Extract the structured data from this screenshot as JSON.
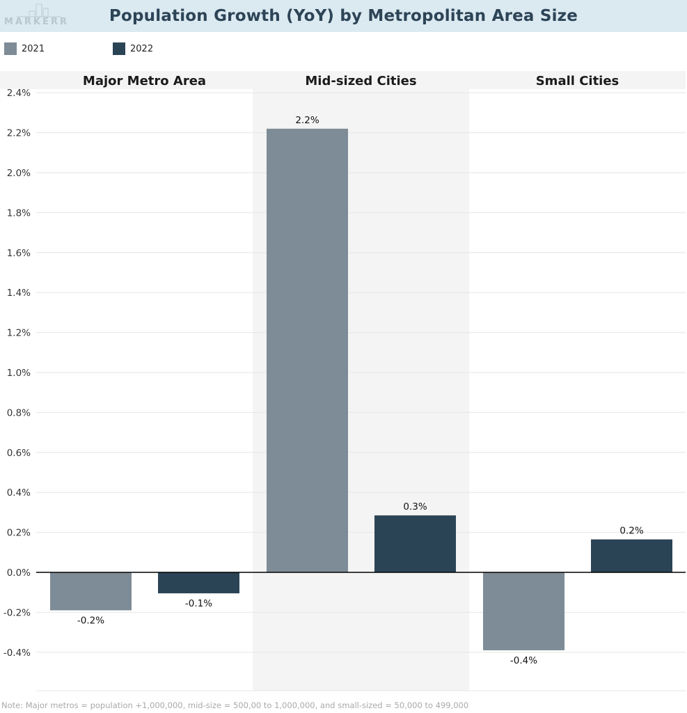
{
  "header": {
    "title": "Population Growth (YoY) by Metropolitan Area Size",
    "logo_text": "MARKERR"
  },
  "legend": [
    {
      "label": "2021",
      "color": "#7e8c97"
    },
    {
      "label": "2022",
      "color": "#2b4455"
    }
  ],
  "chart_data": {
    "type": "bar",
    "categories": [
      "Major Metro Area",
      "Mid-sized Cities",
      "Small Cities"
    ],
    "series": [
      {
        "name": "2021",
        "color": "#7e8c97",
        "values": [
          -0.19,
          2.22,
          -0.39
        ],
        "labels": [
          "-0.2%",
          "2.2%",
          "-0.4%"
        ]
      },
      {
        "name": "2022",
        "color": "#2b4455",
        "values": [
          -0.105,
          0.285,
          0.165
        ],
        "labels": [
          "-0.1%",
          "0.3%",
          "0.2%"
        ]
      }
    ],
    "ylim": [
      -0.6,
      2.45
    ],
    "yticks": [
      {
        "value": 2.4,
        "label": "2.4%"
      },
      {
        "value": 2.2,
        "label": "2.2%"
      },
      {
        "value": 2.0,
        "label": "2.0%"
      },
      {
        "value": 1.8,
        "label": "1.8%"
      },
      {
        "value": 1.6,
        "label": "1.6%"
      },
      {
        "value": 1.4,
        "label": "1.4%"
      },
      {
        "value": 1.2,
        "label": "1.2%"
      },
      {
        "value": 1.0,
        "label": "1.0%"
      },
      {
        "value": 0.8,
        "label": "0.8%"
      },
      {
        "value": 0.6,
        "label": "0.6%"
      },
      {
        "value": 0.4,
        "label": "0.4%"
      },
      {
        "value": 0.2,
        "label": "0.2%"
      },
      {
        "value": 0.0,
        "label": "0.0%"
      },
      {
        "value": -0.2,
        "label": "-0.2%"
      },
      {
        "value": -0.4,
        "label": "-0.4%"
      }
    ],
    "grid": true,
    "legend_position": "top-left"
  },
  "footnote": "Note: Major metros = population +1,000,000, mid-size = 500,00 to 1,000,000, and small-sized = 50,000 to 499,000"
}
